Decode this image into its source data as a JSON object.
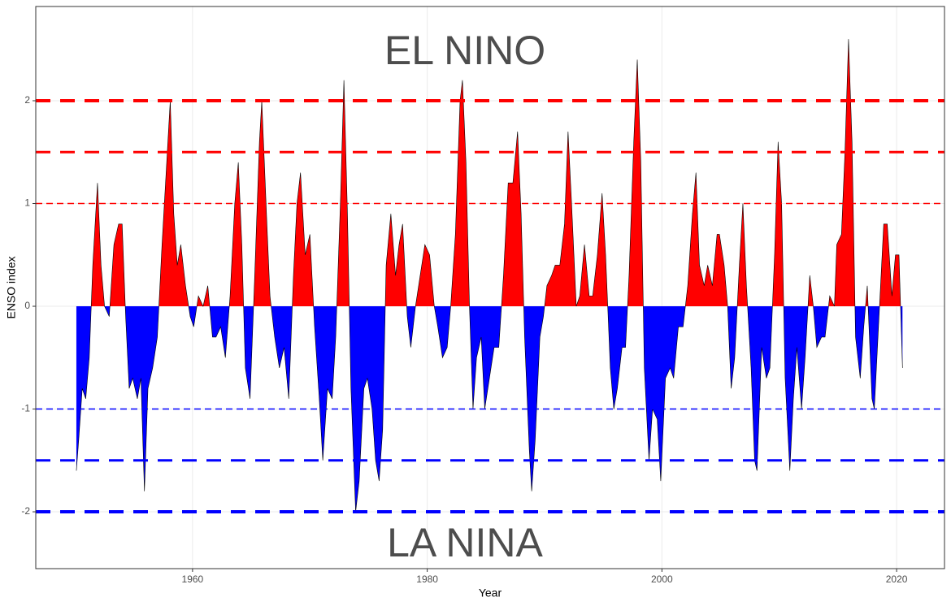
{
  "chart_data": {
    "type": "area",
    "x_label": "Year",
    "y_label": "ENSO index",
    "positive_color": "#ff0000",
    "negative_color": "#0000ff",
    "xlim": [
      1946.64,
      2024.08
    ],
    "xticks": [
      1960,
      1980,
      2000,
      2020
    ],
    "ylim": [
      -2.553,
      2.917
    ],
    "yticks": [
      -2,
      -1,
      0,
      1,
      2
    ],
    "grid": true,
    "hlines": [
      {
        "value": 2,
        "color": "#ff0000",
        "width": 4
      },
      {
        "value": 1.5,
        "color": "#ff0000",
        "width": 3
      },
      {
        "value": 1,
        "color": "#ff0000",
        "width": 1.5
      },
      {
        "value": -1,
        "color": "#0000ff",
        "width": 1.5
      },
      {
        "value": -1.5,
        "color": "#0000ff",
        "width": 3
      },
      {
        "value": -2,
        "color": "#0000ff",
        "width": 4
      }
    ],
    "annotations": [
      {
        "text": "EL NINO",
        "color": "#ff0000"
      },
      {
        "text": "LA NINA",
        "color": "#0000ff"
      }
    ],
    "x": [
      1950.1,
      1950.3,
      1950.6,
      1950.9,
      1951.2,
      1951.5,
      1951.9,
      1952.2,
      1952.5,
      1952.9,
      1953.3,
      1953.7,
      1954.0,
      1954.3,
      1954.6,
      1954.9,
      1955.3,
      1955.6,
      1955.9,
      1956.2,
      1956.6,
      1957.0,
      1957.4,
      1957.8,
      1958.1,
      1958.4,
      1958.7,
      1959.0,
      1959.4,
      1959.8,
      1960.1,
      1960.5,
      1960.9,
      1961.3,
      1961.7,
      1962.0,
      1962.4,
      1962.8,
      1963.2,
      1963.6,
      1963.9,
      1964.2,
      1964.5,
      1964.9,
      1965.3,
      1965.7,
      1965.9,
      1966.3,
      1966.6,
      1967.0,
      1967.4,
      1967.8,
      1968.2,
      1968.6,
      1968.9,
      1969.2,
      1969.6,
      1970.0,
      1970.4,
      1970.8,
      1971.1,
      1971.5,
      1971.9,
      1972.2,
      1972.6,
      1972.9,
      1973.2,
      1973.5,
      1973.9,
      1974.2,
      1974.6,
      1974.9,
      1975.3,
      1975.6,
      1975.9,
      1976.2,
      1976.5,
      1976.9,
      1977.3,
      1977.6,
      1977.9,
      1978.3,
      1978.6,
      1979.0,
      1979.4,
      1979.8,
      1980.2,
      1980.6,
      1980.9,
      1981.3,
      1981.7,
      1982.0,
      1982.4,
      1982.8,
      1983.0,
      1983.3,
      1983.6,
      1983.9,
      1984.2,
      1984.6,
      1984.9,
      1985.3,
      1985.7,
      1986.1,
      1986.5,
      1986.9,
      1987.3,
      1987.7,
      1988.0,
      1988.3,
      1988.7,
      1988.9,
      1989.2,
      1989.6,
      1989.9,
      1990.2,
      1990.6,
      1990.9,
      1991.3,
      1991.7,
      1992.0,
      1992.3,
      1992.7,
      1993.0,
      1993.4,
      1993.8,
      1994.1,
      1994.5,
      1994.9,
      1995.2,
      1995.6,
      1995.9,
      1996.2,
      1996.6,
      1996.9,
      1997.2,
      1997.6,
      1997.9,
      1998.2,
      1998.5,
      1998.9,
      1999.2,
      1999.6,
      1999.9,
      2000.3,
      2000.7,
      2001.0,
      2001.4,
      2001.8,
      2002.2,
      2002.6,
      2002.9,
      2003.2,
      2003.6,
      2003.9,
      2004.3,
      2004.7,
      2004.9,
      2005.3,
      2005.6,
      2005.9,
      2006.2,
      2006.6,
      2006.9,
      2007.2,
      2007.6,
      2007.9,
      2008.1,
      2008.5,
      2008.9,
      2009.2,
      2009.6,
      2009.9,
      2010.2,
      2010.5,
      2010.9,
      2011.2,
      2011.5,
      2011.9,
      2012.2,
      2012.6,
      2012.9,
      2013.2,
      2013.6,
      2013.9,
      2014.3,
      2014.7,
      2014.9,
      2015.3,
      2015.6,
      2015.9,
      2016.2,
      2016.5,
      2016.9,
      2017.2,
      2017.5,
      2017.9,
      2018.1,
      2018.5,
      2018.9,
      2019.2,
      2019.6,
      2019.9,
      2020.2,
      2020.5
    ],
    "values": [
      -1.6,
      -1.3,
      -0.8,
      -0.9,
      -0.5,
      0.4,
      1.2,
      0.4,
      0.0,
      -0.1,
      0.6,
      0.8,
      0.8,
      -0.1,
      -0.8,
      -0.7,
      -0.9,
      -0.7,
      -1.8,
      -0.8,
      -0.6,
      -0.3,
      0.6,
      1.4,
      2.0,
      0.9,
      0.4,
      0.6,
      0.2,
      -0.1,
      -0.2,
      0.1,
      0.0,
      0.2,
      -0.3,
      -0.3,
      -0.2,
      -0.5,
      0.1,
      1.0,
      1.4,
      0.6,
      -0.6,
      -0.9,
      0.3,
      1.6,
      2.0,
      0.9,
      0.1,
      -0.3,
      -0.6,
      -0.4,
      -0.9,
      0.3,
      1.0,
      1.3,
      0.5,
      0.7,
      -0.2,
      -0.9,
      -1.5,
      -0.8,
      -0.9,
      -0.3,
      1.0,
      2.2,
      0.9,
      -0.8,
      -2.0,
      -1.7,
      -0.8,
      -0.7,
      -1.0,
      -1.5,
      -1.7,
      -1.2,
      0.4,
      0.9,
      0.3,
      0.6,
      0.8,
      -0.1,
      -0.4,
      0.0,
      0.3,
      0.6,
      0.5,
      0.0,
      -0.2,
      -0.5,
      -0.4,
      0.0,
      0.7,
      2.0,
      2.2,
      1.4,
      0.0,
      -1.0,
      -0.5,
      -0.3,
      -1.0,
      -0.7,
      -0.4,
      -0.4,
      0.3,
      1.2,
      1.2,
      1.7,
      0.9,
      -0.3,
      -1.4,
      -1.8,
      -1.3,
      -0.3,
      -0.1,
      0.2,
      0.3,
      0.4,
      0.4,
      0.8,
      1.7,
      1.0,
      0.0,
      0.1,
      0.6,
      0.1,
      0.1,
      0.5,
      1.1,
      0.5,
      -0.6,
      -1.0,
      -0.8,
      -0.4,
      -0.4,
      0.3,
      1.6,
      2.4,
      1.4,
      -0.6,
      -1.5,
      -1.0,
      -1.1,
      -1.7,
      -0.7,
      -0.6,
      -0.7,
      -0.2,
      -0.2,
      0.2,
      0.9,
      1.3,
      0.4,
      0.2,
      0.4,
      0.2,
      0.7,
      0.7,
      0.4,
      0.0,
      -0.8,
      -0.5,
      0.4,
      1.0,
      0.2,
      -0.6,
      -1.5,
      -1.6,
      -0.4,
      -0.7,
      -0.6,
      0.5,
      1.6,
      1.0,
      -0.7,
      -1.6,
      -0.9,
      -0.4,
      -1.0,
      -0.5,
      0.3,
      0.0,
      -0.4,
      -0.3,
      -0.3,
      0.1,
      0.0,
      0.6,
      0.7,
      1.5,
      2.6,
      1.6,
      -0.3,
      -0.7,
      -0.2,
      0.2,
      -0.9,
      -1.0,
      -0.1,
      0.8,
      0.8,
      0.1,
      0.5,
      0.5,
      -0.6
    ]
  }
}
